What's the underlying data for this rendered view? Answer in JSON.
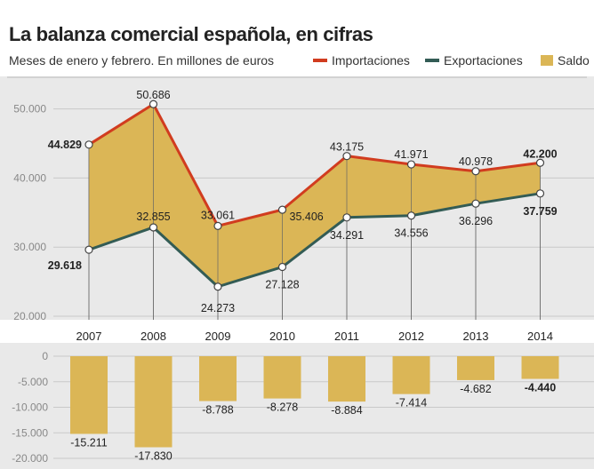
{
  "title": "La balanza comercial española, en cifras",
  "subtitle": "Meses de enero y febrero. En millones de euros",
  "colors": {
    "importaciones": "#d13c1f",
    "exportaciones": "#335c55",
    "saldo": "#dbb656",
    "band": "#e9e9e9",
    "text": "#222222",
    "axis": "#888888"
  },
  "legend": [
    {
      "label": "Importaciones",
      "kind": "line",
      "color": "#d13c1f"
    },
    {
      "label": "Exportaciones",
      "kind": "line",
      "color": "#335c55"
    },
    {
      "label": "Saldo",
      "kind": "box",
      "color": "#dbb656"
    }
  ],
  "chart_data": [
    {
      "type": "line",
      "categories": [
        "2007",
        "2008",
        "2009",
        "2010",
        "2011",
        "2012",
        "2013",
        "2014"
      ],
      "series": [
        {
          "name": "Importaciones",
          "values": [
            44829,
            50686,
            33061,
            35406,
            43175,
            41971,
            40978,
            42200
          ],
          "labels": [
            "44.829",
            "50.686",
            "33.061",
            "35.406",
            "43.175",
            "41.971",
            "40.978",
            "42.200"
          ]
        },
        {
          "name": "Exportaciones",
          "values": [
            29618,
            32855,
            24273,
            27128,
            34291,
            34556,
            36296,
            37759
          ],
          "labels": [
            "29.618",
            "32.855",
            "24.273",
            "27.128",
            "34.291",
            "34.556",
            "36.296",
            "37.759"
          ]
        }
      ],
      "fill_between": "Saldo",
      "ylim": [
        20000,
        52000
      ],
      "yticks": [
        20000,
        30000,
        40000,
        50000
      ],
      "ytick_labels": [
        "20.000",
        "30.000",
        "40.000",
        "50.000"
      ],
      "bold_labels": [
        "2007",
        "2014"
      ]
    },
    {
      "type": "bar",
      "categories": [
        "2007",
        "2008",
        "2009",
        "2010",
        "2011",
        "2012",
        "2013",
        "2014"
      ],
      "series": [
        {
          "name": "Saldo",
          "values": [
            -15211,
            -17830,
            -8788,
            -8278,
            -8884,
            -7414,
            -4682,
            -4440
          ],
          "labels": [
            "-15.211",
            "-17.830",
            "-8.788",
            "-8.278",
            "-8.884",
            "-7.414",
            "-4.682",
            "-4.440"
          ]
        }
      ],
      "ylim": [
        -20000,
        0
      ],
      "yticks": [
        0,
        -5000,
        -10000,
        -15000,
        -20000
      ],
      "ytick_labels": [
        "0",
        "-5.000",
        "-10.000",
        "-15.000",
        "-20.000"
      ],
      "bold_labels": [
        "2014"
      ]
    }
  ]
}
